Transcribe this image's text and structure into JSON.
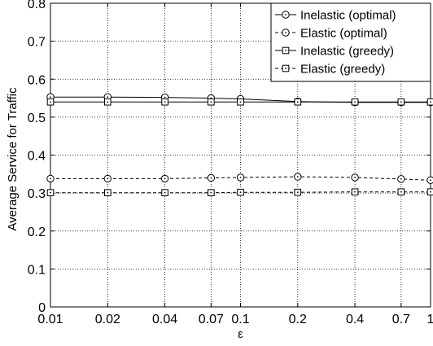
{
  "chart_data": {
    "type": "line",
    "title": "",
    "xlabel": "ε",
    "ylabel": "Average Service for Traffic",
    "x": [
      0.01,
      0.02,
      0.04,
      0.07,
      0.1,
      0.2,
      0.4,
      0.7,
      1
    ],
    "x_tick_labels": [
      "0.01",
      "0.02",
      "0.04",
      "0.07",
      "0.1",
      "0.2",
      "0.4",
      "0.7",
      "1"
    ],
    "y_ticks": [
      "0",
      "0.1",
      "0.2",
      "0.3",
      "0.4",
      "0.5",
      "0.6",
      "0.7",
      "0.8"
    ],
    "ylim": [
      0,
      0.8
    ],
    "x_scale": "log",
    "grid": true,
    "legend_position": "top-right",
    "series": [
      {
        "name": "Inelastic (optimal)",
        "line": "solid",
        "marker": "circle",
        "values": [
          0.553,
          0.553,
          0.552,
          0.55,
          0.548,
          0.541,
          0.539,
          0.539,
          0.539
        ]
      },
      {
        "name": "Elastic (optimal)",
        "line": "dashed",
        "marker": "circle",
        "values": [
          0.338,
          0.338,
          0.338,
          0.34,
          0.341,
          0.343,
          0.341,
          0.337,
          0.334
        ]
      },
      {
        "name": "Inelastic (greedy)",
        "line": "solid",
        "marker": "square",
        "values": [
          0.54,
          0.54,
          0.54,
          0.54,
          0.54,
          0.54,
          0.54,
          0.54,
          0.54
        ]
      },
      {
        "name": "Elastic (greedy)",
        "line": "dashed",
        "marker": "square",
        "values": [
          0.301,
          0.301,
          0.301,
          0.301,
          0.302,
          0.302,
          0.303,
          0.303,
          0.303
        ]
      }
    ]
  }
}
